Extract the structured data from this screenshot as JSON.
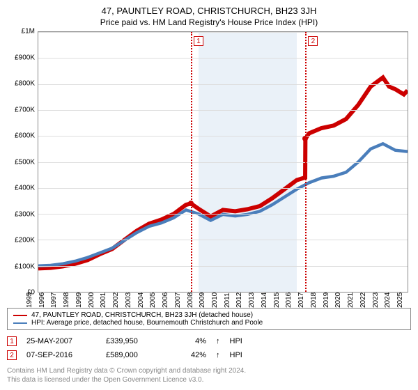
{
  "title": "47, PAUNTLEY ROAD, CHRISTCHURCH, BH23 3JH",
  "subtitle": "Price paid vs. HM Land Registry's House Price Index (HPI)",
  "chart": {
    "type": "line",
    "background_color": "#ffffff",
    "grid_color": "#dddddd",
    "border_color": "#888888",
    "shade_color": "#eaf1f8",
    "y": {
      "min": 0,
      "max": 1000000,
      "step": 100000,
      "labels": [
        "£0",
        "£100K",
        "£200K",
        "£300K",
        "£400K",
        "£500K",
        "£600K",
        "£700K",
        "£800K",
        "£900K",
        "£1M"
      ]
    },
    "x": {
      "min": 1995,
      "max": 2025,
      "step": 1,
      "labels": [
        "1995",
        "1996",
        "1997",
        "1998",
        "1999",
        "2000",
        "2001",
        "2002",
        "2003",
        "2004",
        "2005",
        "2006",
        "2007",
        "2008",
        "2009",
        "2010",
        "2011",
        "2012",
        "2013",
        "2014",
        "2015",
        "2016",
        "2017",
        "2018",
        "2019",
        "2020",
        "2021",
        "2022",
        "2023",
        "2024",
        "2025"
      ]
    },
    "shade_start_year": 2008,
    "shade_end_year": 2016,
    "events": [
      {
        "idx": "1",
        "year": 2007.4,
        "value": 339950
      },
      {
        "idx": "2",
        "year": 2016.7,
        "value": 589000
      }
    ],
    "series": [
      {
        "name": "47, PAUNTLEY ROAD, CHRISTCHURCH, BH23 3JH (detached house)",
        "color": "#cc0000",
        "width": 2,
        "points": [
          [
            1995,
            90000
          ],
          [
            1996,
            92000
          ],
          [
            1997,
            98000
          ],
          [
            1998,
            108000
          ],
          [
            1999,
            122000
          ],
          [
            2000,
            145000
          ],
          [
            2001,
            165000
          ],
          [
            2002,
            200000
          ],
          [
            2003,
            235000
          ],
          [
            2004,
            262000
          ],
          [
            2005,
            278000
          ],
          [
            2006,
            300000
          ],
          [
            2007,
            335000
          ],
          [
            2007.4,
            339950
          ],
          [
            2008,
            320000
          ],
          [
            2009,
            290000
          ],
          [
            2010,
            315000
          ],
          [
            2011,
            310000
          ],
          [
            2012,
            318000
          ],
          [
            2013,
            330000
          ],
          [
            2014,
            360000
          ],
          [
            2015,
            395000
          ],
          [
            2016,
            430000
          ],
          [
            2016.68,
            440000
          ],
          [
            2016.7,
            589000
          ],
          [
            2017,
            610000
          ],
          [
            2018,
            630000
          ],
          [
            2019,
            640000
          ],
          [
            2020,
            665000
          ],
          [
            2021,
            720000
          ],
          [
            2022,
            790000
          ],
          [
            2023,
            825000
          ],
          [
            2023.5,
            790000
          ],
          [
            2024,
            780000
          ],
          [
            2024.7,
            760000
          ],
          [
            2025,
            775000
          ]
        ]
      },
      {
        "name": "HPI: Average price, detached house, Bournemouth Christchurch and Poole",
        "color": "#4a7ebb",
        "width": 1.5,
        "points": [
          [
            1995,
            100000
          ],
          [
            1996,
            102000
          ],
          [
            1997,
            108000
          ],
          [
            1998,
            118000
          ],
          [
            1999,
            132000
          ],
          [
            2000,
            150000
          ],
          [
            2001,
            168000
          ],
          [
            2002,
            198000
          ],
          [
            2003,
            228000
          ],
          [
            2004,
            252000
          ],
          [
            2005,
            265000
          ],
          [
            2006,
            285000
          ],
          [
            2007,
            315000
          ],
          [
            2008,
            300000
          ],
          [
            2009,
            275000
          ],
          [
            2010,
            298000
          ],
          [
            2011,
            292000
          ],
          [
            2012,
            298000
          ],
          [
            2013,
            310000
          ],
          [
            2014,
            335000
          ],
          [
            2015,
            365000
          ],
          [
            2016,
            395000
          ],
          [
            2017,
            420000
          ],
          [
            2018,
            438000
          ],
          [
            2019,
            445000
          ],
          [
            2020,
            460000
          ],
          [
            2021,
            500000
          ],
          [
            2022,
            550000
          ],
          [
            2023,
            570000
          ],
          [
            2024,
            545000
          ],
          [
            2025,
            540000
          ]
        ]
      }
    ]
  },
  "legend": [
    {
      "color": "#cc0000",
      "label": "47, PAUNTLEY ROAD, CHRISTCHURCH, BH23 3JH (detached house)"
    },
    {
      "color": "#4a7ebb",
      "label": "HPI: Average price, detached house, Bournemouth Christchurch and Poole"
    }
  ],
  "sales": [
    {
      "idx": "1",
      "date": "25-MAY-2007",
      "price": "£339,950",
      "diff": "4%",
      "arrow": "↑",
      "vs": "HPI"
    },
    {
      "idx": "2",
      "date": "07-SEP-2016",
      "price": "£589,000",
      "diff": "42%",
      "arrow": "↑",
      "vs": "HPI"
    }
  ],
  "footer1": "Contains HM Land Registry data © Crown copyright and database right 2024.",
  "footer2": "This data is licensed under the Open Government Licence v3.0."
}
